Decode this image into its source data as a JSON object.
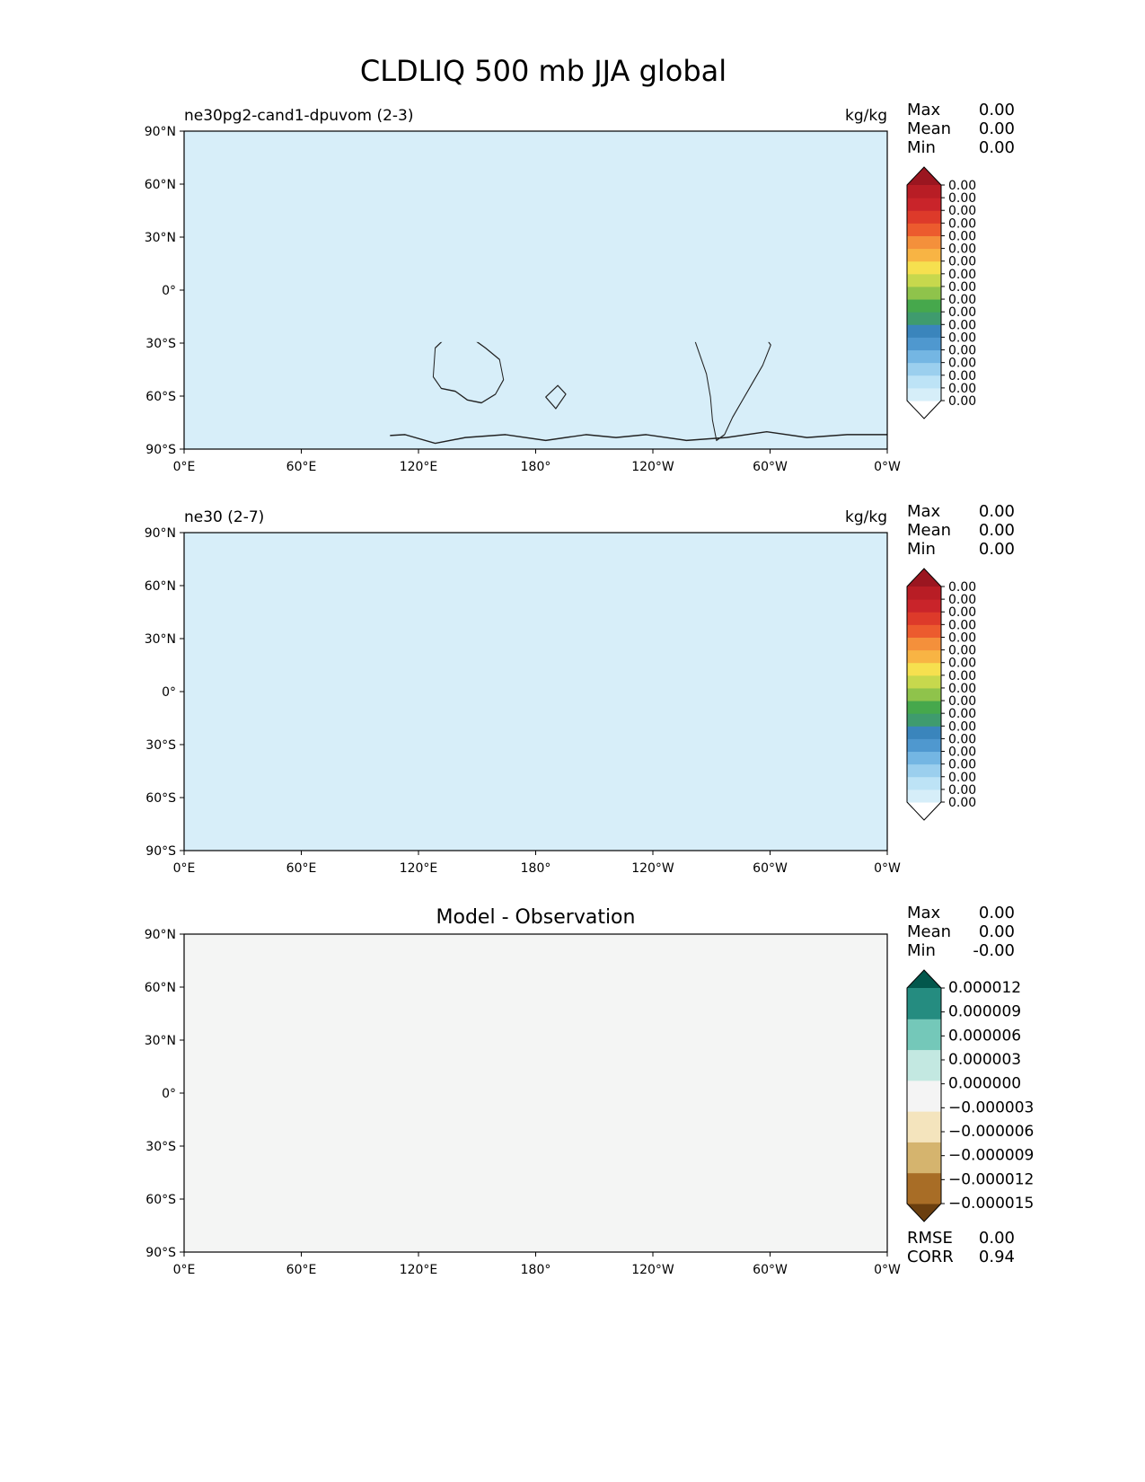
{
  "title": "CLDLIQ 500 mb JJA global",
  "lat_ticks": [
    "90°N",
    "60°N",
    "30°N",
    "0°",
    "30°S",
    "60°S",
    "90°S"
  ],
  "lon_ticks": [
    "0°E",
    "60°E",
    "120°E",
    "180°",
    "120°W",
    "60°W",
    "0°W"
  ],
  "panels": [
    {
      "title_left": "ne30pg2-cand1-dpuvom (2-3)",
      "title_center": "",
      "units": "kg/kg",
      "stats": [
        {
          "label": "Max",
          "value": "0.00"
        },
        {
          "label": "Mean",
          "value": "0.00"
        },
        {
          "label": "Min",
          "value": "0.00"
        }
      ],
      "colorbar": {
        "colors": [
          "#ffffff",
          "#d6eef9",
          "#bde3f6",
          "#9bcfee",
          "#74b6e3",
          "#4f98cf",
          "#3a85bc",
          "#3f9b6e",
          "#46a84c",
          "#8fc34b",
          "#c7d84d",
          "#f6e04f",
          "#f8b444",
          "#f4903b",
          "#ec5b2e",
          "#dd3a2a",
          "#c9242a",
          "#b81d25",
          "#9b1620"
        ],
        "labels": [
          "0.00",
          "0.00",
          "0.00",
          "0.00",
          "0.00",
          "0.00",
          "0.00",
          "0.00",
          "0.00",
          "0.00",
          "0.00",
          "0.00",
          "0.00",
          "0.00",
          "0.00",
          "0.00",
          "0.00",
          "0.00"
        ]
      },
      "map_style": {
        "background": "#d7eef9",
        "patch": "#b9e0f7",
        "strong": "#8cc4e6",
        "deep": "#5d9ecc",
        "gap": "#ffffff"
      }
    },
    {
      "title_left": "ne30 (2-7)",
      "title_center": "",
      "units": "kg/kg",
      "stats": [
        {
          "label": "Max",
          "value": "0.00"
        },
        {
          "label": "Mean",
          "value": "0.00"
        },
        {
          "label": "Min",
          "value": "0.00"
        }
      ],
      "colorbar": {
        "colors": [
          "#ffffff",
          "#d6eef9",
          "#bde3f6",
          "#9bcfee",
          "#74b6e3",
          "#4f98cf",
          "#3a85bc",
          "#3f9b6e",
          "#46a84c",
          "#8fc34b",
          "#c7d84d",
          "#f6e04f",
          "#f8b444",
          "#f4903b",
          "#ec5b2e",
          "#dd3a2a",
          "#c9242a",
          "#b81d25",
          "#9b1620"
        ],
        "labels": [
          "0.00",
          "0.00",
          "0.00",
          "0.00",
          "0.00",
          "0.00",
          "0.00",
          "0.00",
          "0.00",
          "0.00",
          "0.00",
          "0.00",
          "0.00",
          "0.00",
          "0.00",
          "0.00",
          "0.00",
          "0.00"
        ]
      },
      "map_style": {
        "background": "#d7eef9",
        "patch": "#b9e0f7",
        "strong": "#8cc4e6",
        "deep": "#5d9ecc",
        "gap": "#ffffff"
      }
    },
    {
      "title_left": "",
      "title_center": "Model - Observation",
      "units": "",
      "stats": [
        {
          "label": "Max",
          "value": "0.00"
        },
        {
          "label": "Mean",
          "value": "0.00"
        },
        {
          "label": "Min",
          "value": "-0.00"
        }
      ],
      "colorbar": {
        "colors": [
          "#6b3f0f",
          "#a86d26",
          "#d5b46e",
          "#f4e4bd",
          "#f4f4f4",
          "#c3e8e1",
          "#74c8b9",
          "#258c80",
          "#02574c"
        ],
        "labels": [
          "−0.000015",
          "−0.000012",
          "−0.000009",
          "−0.000006",
          "−0.000003",
          "0.000000",
          "0.000003",
          "0.000006",
          "0.000009",
          "0.000012"
        ]
      },
      "map_style": {
        "background": "#f4f5f4",
        "patch": "#c3e8e1",
        "strong": "#74c8b9",
        "deep": "#1f7c70",
        "gap": "#f4e4bd"
      },
      "metrics": [
        {
          "label": "RMSE",
          "value": "0.00"
        },
        {
          "label": "CORR",
          "value": "0.94"
        }
      ]
    }
  ]
}
